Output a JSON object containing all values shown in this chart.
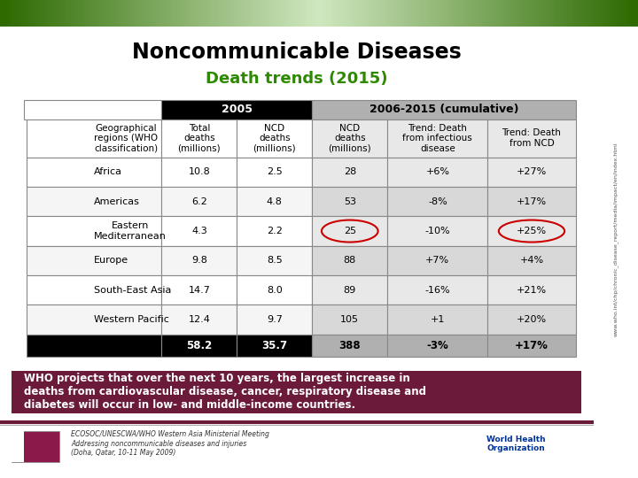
{
  "title": "Noncommunicable Diseases",
  "subtitle": "Death trends (2015)",
  "header_row1": [
    "",
    "2005",
    "",
    "2006-2015 (cumulative)",
    "",
    ""
  ],
  "header_row2": [
    "Geographical\nregions (WHO\nclassification)",
    "Total\ndeaths\n(millions)",
    "NCD\ndeaths\n(millions)",
    "NCD\ndeaths\n(millions)",
    "Trend: Death\nfrom infectious\ndisease",
    "Trend: Death\nfrom NCD"
  ],
  "rows": [
    [
      "Africa",
      "10.8",
      "2.5",
      "28",
      "+6%",
      "+27%"
    ],
    [
      "Americas",
      "6.2",
      "4.8",
      "53",
      "-8%",
      "+17%"
    ],
    [
      "Eastern\nMediterranean",
      "4.3",
      "2.2",
      "25",
      "-10%",
      "+25%"
    ],
    [
      "Europe",
      "9.8",
      "8.5",
      "88",
      "+7%",
      "+4%"
    ],
    [
      "South-East Asia",
      "14.7",
      "8.0",
      "89",
      "-16%",
      "+21%"
    ],
    [
      "Western Pacific",
      "12.4",
      "9.7",
      "105",
      "+1",
      "+20%"
    ]
  ],
  "total_row": [
    "",
    "58.2",
    "35.7",
    "388",
    "-3%",
    "+17%"
  ],
  "circle_cells": [
    [
      2,
      3
    ],
    [
      2,
      5
    ]
  ],
  "footnote": "WHO projects that over the next 10 years, the largest increase in\ndeaths from cardiovascular disease, cancer, respiratory disease and\ndiabetes will occur in low- and middle-income countries.",
  "footer_text": "ECOSOC/UNESCWA/WHO Western Asia Ministerial Meeting\nAddressing noncommunicable diseases and injuries\n(Doha, Qatar, 10-11 May 2009)",
  "bg_color": "#ffffff",
  "header_bar_color": "#2d6a00",
  "title_color": "#000000",
  "subtitle_color": "#2d8a00",
  "col0_header_bg": "#000000",
  "col0_header_fg": "#ffffff",
  "cumulative_header_bg": "#b0b0b0",
  "cumulative_header_fg": "#000000",
  "total_row_bg": "#000000",
  "total_row_fg": "#ffffff",
  "total_cumulative_bg": "#b0b0b0",
  "total_cumulative_fg": "#000000",
  "footnote_bg": "#6b1a3a",
  "footnote_fg": "#ffffff",
  "circle_color": "#cc0000",
  "sidebar_url": "www.who.int/chp/chronic_disease_report/media/impact/en/index.html"
}
